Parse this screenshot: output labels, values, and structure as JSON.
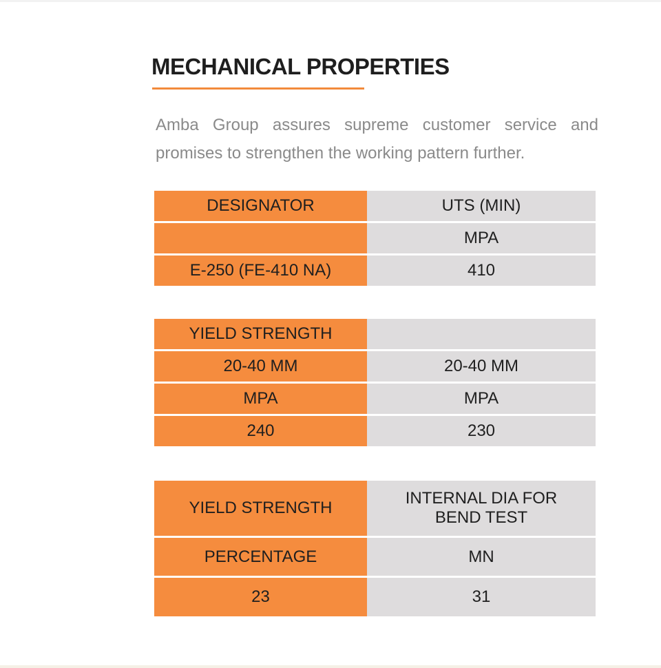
{
  "page": {
    "title": "MECHANICAL PROPERTIES",
    "intro": "Amba Group assures supreme customer service and promises to strengthen the working pattern further."
  },
  "tables": [
    {
      "rows": [
        [
          "DESIGNATOR",
          "UTS (MIN)"
        ],
        [
          "",
          "MPA"
        ],
        [
          "E-250 (FE-410 NA)",
          "410"
        ]
      ]
    },
    {
      "rows": [
        [
          "YIELD STRENGTH",
          ""
        ],
        [
          "20-40 MM",
          "20-40 MM"
        ],
        [
          "MPA",
          "MPA"
        ],
        [
          "240",
          "230"
        ]
      ]
    },
    {
      "rows": [
        [
          "YIELD STRENGTH",
          "INTERNAL DIA FOR BEND TEST"
        ],
        [
          "PERCENTAGE",
          "MN"
        ],
        [
          "23",
          "31"
        ]
      ]
    }
  ],
  "colors": {
    "accent_orange": "#f58c3e",
    "underline_orange": "#f28a3b",
    "cell_gray": "#dedcdd",
    "heading_text": "#1e1e1e",
    "body_text": "#8a8a8a"
  }
}
